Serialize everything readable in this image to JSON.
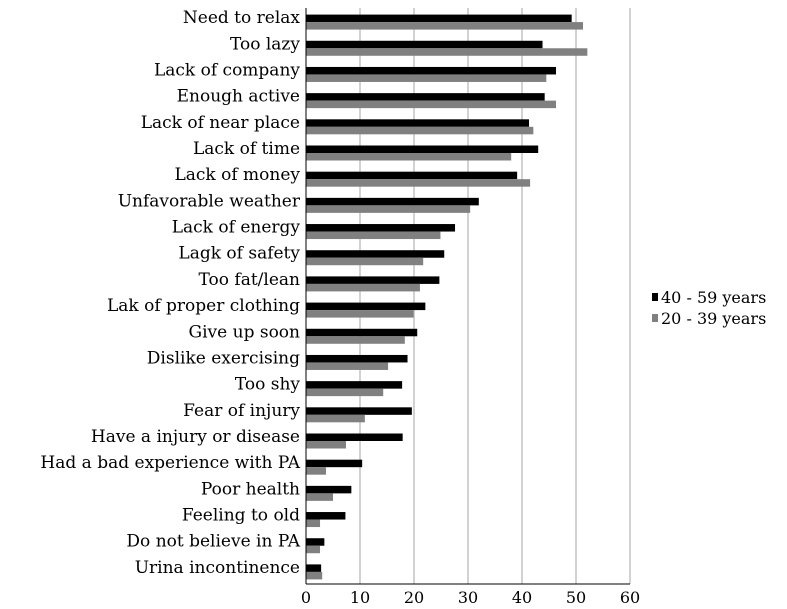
{
  "chart_data": {
    "type": "bar",
    "orientation": "horizontal",
    "categories": [
      "Need to relax",
      "Too lazy",
      "Lack of company",
      "Enough active",
      "Lack of near place",
      "Lack of time",
      "Lack of money",
      "Unfavorable weather",
      "Lack of energy",
      "Lagk of safety",
      "Too fat/lean",
      "Lak of proper clothing",
      "Give up soon",
      "Dislike exercising",
      "Too shy",
      "Fear of injury",
      "Have a injury or disease",
      "Had a bad experience with PA",
      "Poor health",
      "Feeling to old",
      "Do not believe in PA",
      "Urina incontinence"
    ],
    "series": [
      {
        "name": "40 - 59 years",
        "color": "#000000",
        "values": [
          49.2,
          43.8,
          46.3,
          44.2,
          41.3,
          43.0,
          39.1,
          32.0,
          27.6,
          25.6,
          24.7,
          22.1,
          20.6,
          18.8,
          17.8,
          19.6,
          17.9,
          10.4,
          8.4,
          7.3,
          3.4,
          2.8
        ]
      },
      {
        "name": "20 - 39 years",
        "color": "#808080",
        "values": [
          51.3,
          52.1,
          44.5,
          46.3,
          42.1,
          38.0,
          41.5,
          30.4,
          24.9,
          21.7,
          21.1,
          19.9,
          18.3,
          15.2,
          14.3,
          10.9,
          7.4,
          3.7,
          5.0,
          2.6,
          2.6,
          3.0
        ]
      }
    ],
    "xlim": [
      0,
      60
    ],
    "xticks": [
      0,
      10,
      20,
      30,
      40,
      50,
      60
    ],
    "grid": "vertical",
    "legend": "right"
  }
}
